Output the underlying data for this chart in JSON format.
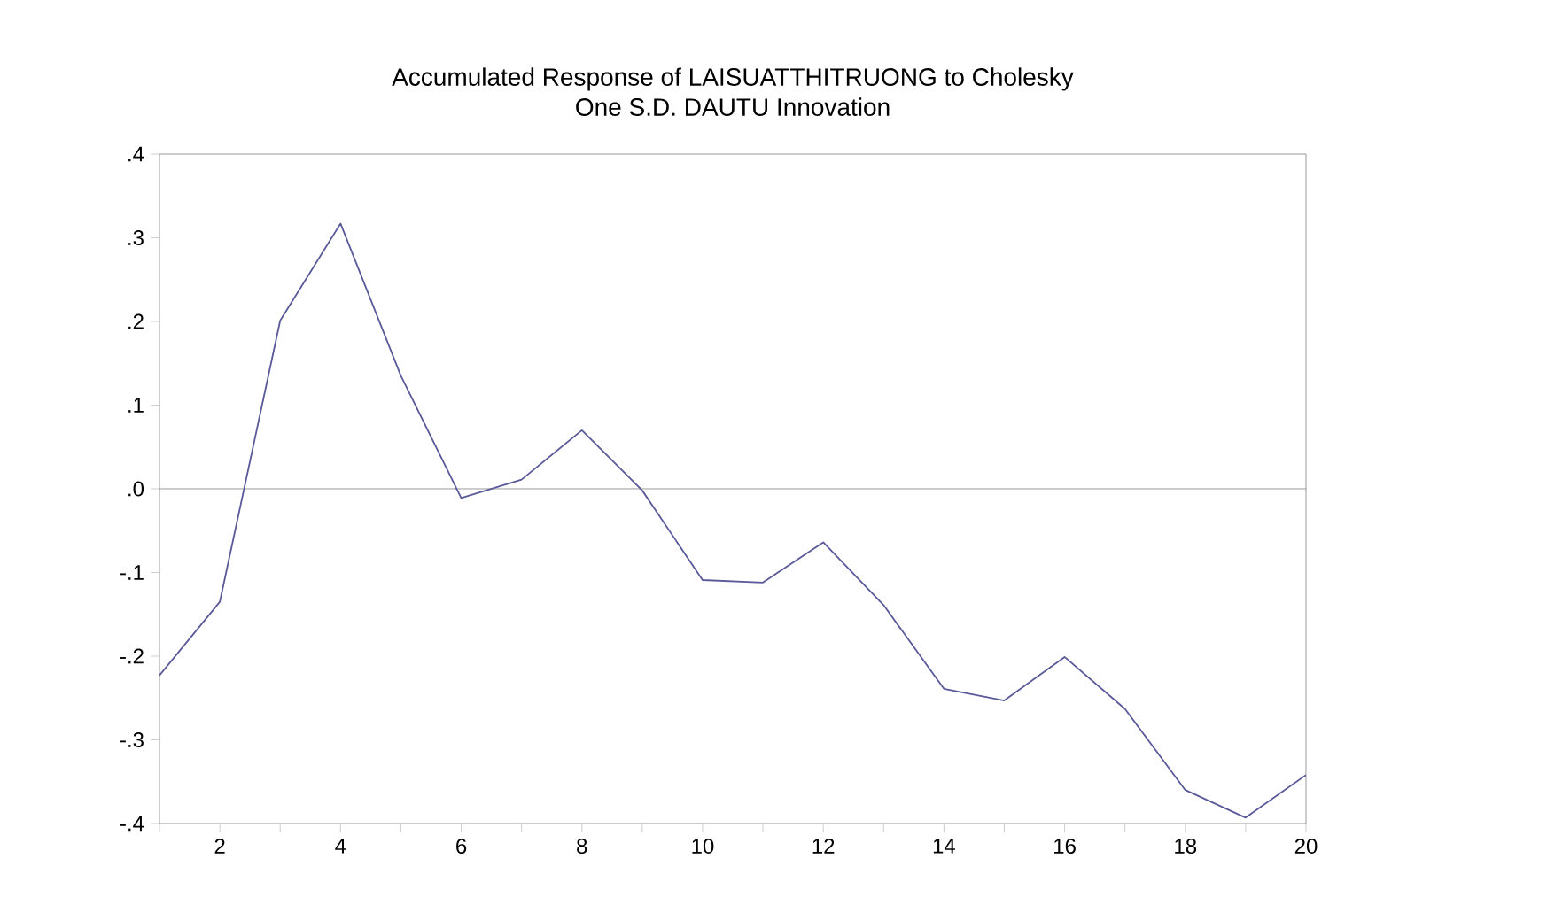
{
  "chart_data": {
    "type": "line",
    "title": "Accumulated Response of LAISUATTHITRUONG to Cholesky\nOne S.D. DAUTU Innovation",
    "x": [
      1,
      2,
      3,
      4,
      5,
      6,
      7,
      8,
      9,
      10,
      11,
      12,
      13,
      14,
      15,
      16,
      17,
      18,
      19,
      20
    ],
    "series": [
      {
        "color": "#5a5a9a",
        "values": [
          -0.223,
          -0.135,
          0.201,
          0.317,
          0.135,
          -0.011,
          0.011,
          0.07,
          -0.002,
          -0.109,
          -0.112,
          -0.064,
          -0.139,
          -0.239,
          -0.253,
          -0.201,
          -0.263,
          -0.36,
          -0.393,
          -0.342
        ]
      }
    ],
    "xlim": [
      1,
      20
    ],
    "xticks": [
      {
        "value": 1,
        "label": null
      },
      2,
      {
        "value": 3,
        "label": null
      },
      4,
      {
        "value": 5,
        "label": null
      },
      6,
      {
        "value": 7,
        "label": null
      },
      8,
      {
        "value": 9,
        "label": null
      },
      10,
      {
        "value": 11,
        "label": null
      },
      12,
      {
        "value": 13,
        "label": null
      },
      14,
      {
        "value": 15,
        "label": null
      },
      16,
      {
        "value": 17,
        "label": null
      },
      18,
      {
        "value": 19,
        "label": null
      },
      20
    ],
    "ylim": [
      -0.4,
      0.4
    ],
    "yticks": [
      {
        "value": -0.4,
        "label": "-.4"
      },
      {
        "value": -0.3,
        "label": "-.3"
      },
      {
        "value": -0.2,
        "label": "-.2"
      },
      {
        "value": -0.1,
        "label": "-.1"
      },
      {
        "value": 0,
        "label": ".0"
      },
      {
        "value": 0.1,
        "label": ".1"
      },
      {
        "value": 0.2,
        "label": ".2"
      },
      {
        "value": 0.3,
        "label": ".3"
      },
      {
        "value": 0.4,
        "label": ".4"
      }
    ],
    "ref_lines": [
      {
        "axis": "y",
        "value": 0,
        "color": "#808080"
      }
    ],
    "marker": "none",
    "line_style": "solid"
  }
}
